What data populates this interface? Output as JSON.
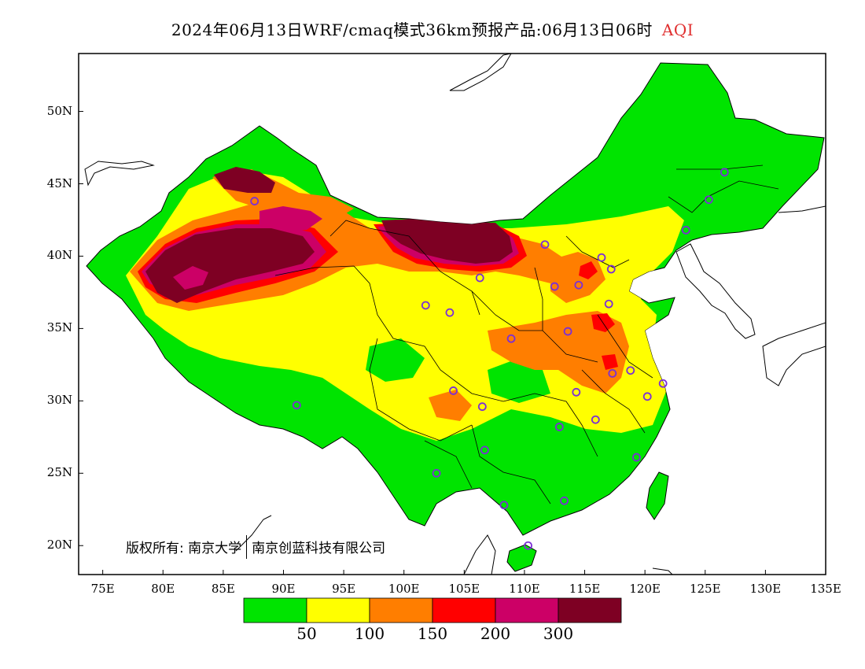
{
  "title": {
    "main": "2024年06月13日WRF/cmaq模式36km预报产品:06月13日06时",
    "variable": "AQI"
  },
  "axes": {
    "y_ticks": [
      "50N",
      "45N",
      "40N",
      "35N",
      "30N",
      "25N",
      "20N"
    ],
    "y_values": [
      50,
      45,
      40,
      35,
      30,
      25,
      20
    ],
    "x_ticks": [
      "75E",
      "80E",
      "85E",
      "90E",
      "95E",
      "100E",
      "105E",
      "110E",
      "115E",
      "120E",
      "125E",
      "130E",
      "135E"
    ],
    "x_values": [
      75,
      80,
      85,
      90,
      95,
      100,
      105,
      110,
      115,
      120,
      125,
      130,
      135
    ],
    "lon_range": [
      73,
      135
    ],
    "lat_range": [
      18,
      54
    ]
  },
  "copyright": {
    "owner_label": "版权所有:",
    "org1": "南京大学",
    "org2": "南京创蓝科技有限公司"
  },
  "colorbar": {
    "colors": [
      "#00e400",
      "#ffff00",
      "#ff7e00",
      "#ff0000",
      "#cc0066",
      "#7e0023"
    ],
    "labels": [
      "50",
      "100",
      "150",
      "200",
      "300"
    ]
  },
  "stations": [
    {
      "lon": 126.6,
      "lat": 45.8
    },
    {
      "lon": 125.3,
      "lat": 43.9
    },
    {
      "lon": 123.4,
      "lat": 41.8
    },
    {
      "lon": 87.6,
      "lat": 43.8
    },
    {
      "lon": 111.7,
      "lat": 40.8
    },
    {
      "lon": 116.4,
      "lat": 39.9
    },
    {
      "lon": 117.2,
      "lat": 39.1
    },
    {
      "lon": 114.5,
      "lat": 38.0
    },
    {
      "lon": 112.5,
      "lat": 37.9
    },
    {
      "lon": 106.3,
      "lat": 38.5
    },
    {
      "lon": 103.8,
      "lat": 36.1
    },
    {
      "lon": 101.8,
      "lat": 36.6
    },
    {
      "lon": 108.9,
      "lat": 34.3
    },
    {
      "lon": 113.6,
      "lat": 34.8
    },
    {
      "lon": 117.0,
      "lat": 36.7
    },
    {
      "lon": 117.3,
      "lat": 31.9
    },
    {
      "lon": 118.8,
      "lat": 32.1
    },
    {
      "lon": 120.2,
      "lat": 30.3
    },
    {
      "lon": 121.5,
      "lat": 31.2
    },
    {
      "lon": 114.3,
      "lat": 30.6
    },
    {
      "lon": 104.1,
      "lat": 30.7
    },
    {
      "lon": 106.5,
      "lat": 29.6
    },
    {
      "lon": 112.9,
      "lat": 28.2
    },
    {
      "lon": 115.9,
      "lat": 28.7
    },
    {
      "lon": 106.7,
      "lat": 26.6
    },
    {
      "lon": 102.7,
      "lat": 25.0
    },
    {
      "lon": 119.3,
      "lat": 26.1
    },
    {
      "lon": 108.3,
      "lat": 22.8
    },
    {
      "lon": 113.3,
      "lat": 23.1
    },
    {
      "lon": 110.3,
      "lat": 20.0
    },
    {
      "lon": 91.1,
      "lat": 29.7
    }
  ]
}
